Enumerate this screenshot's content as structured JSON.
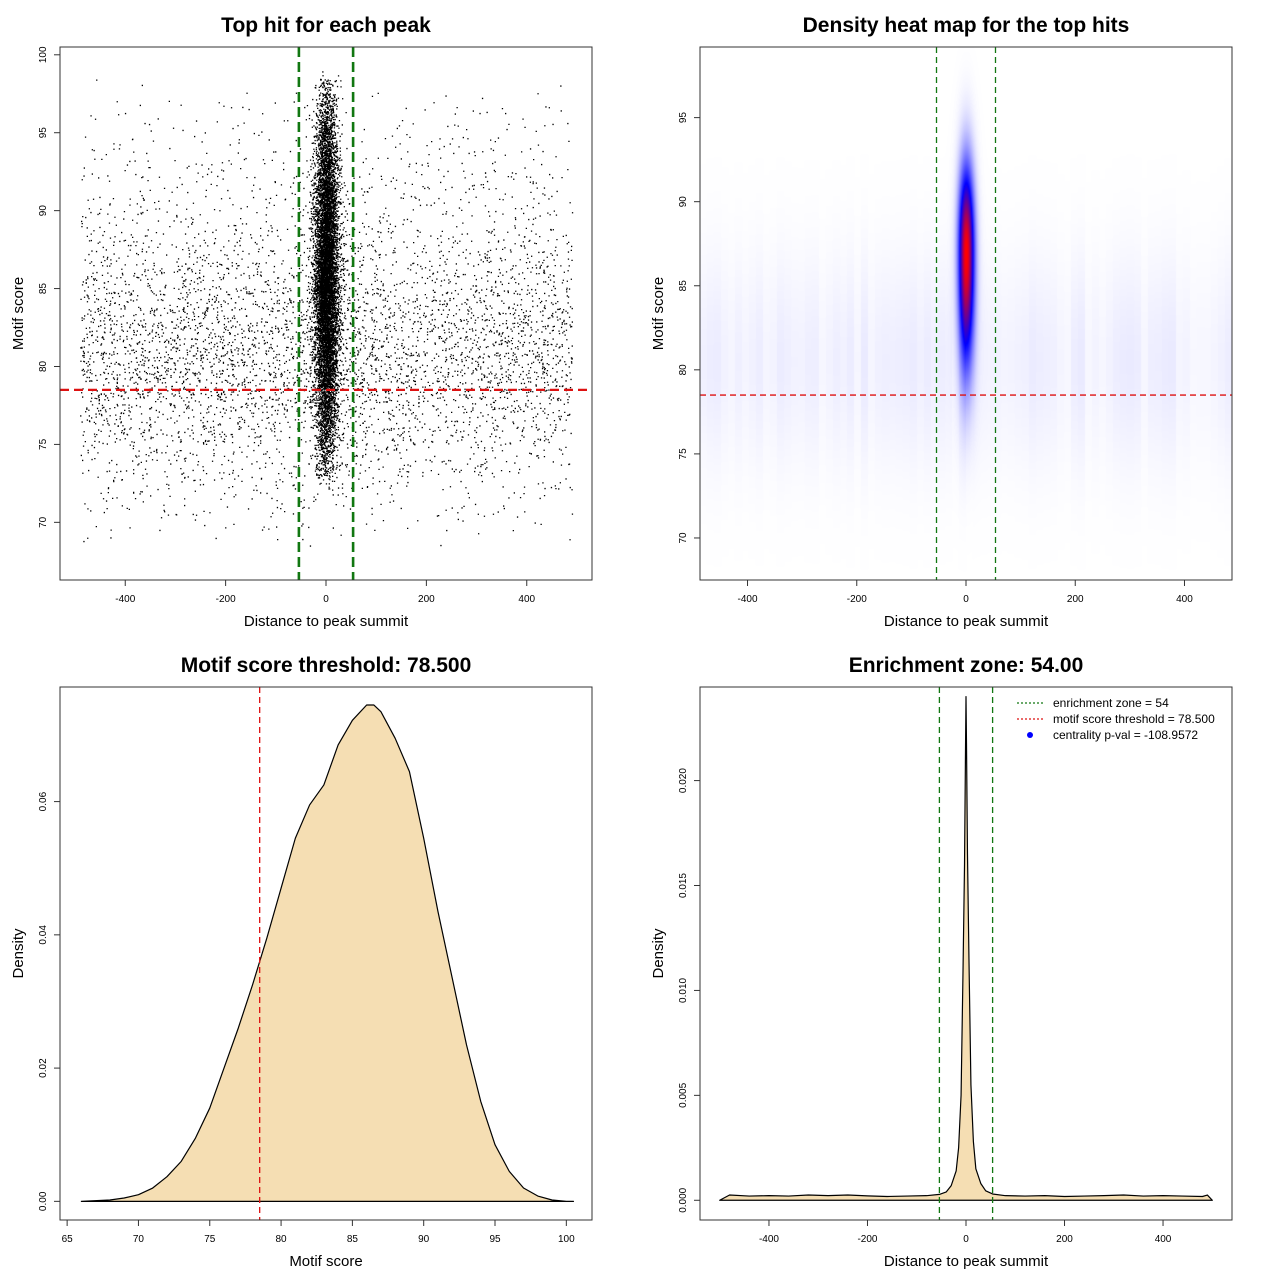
{
  "page": {
    "background": "#ffffff"
  },
  "chart_data": [
    {
      "id": "scatter",
      "type": "scatter",
      "title": "Top hit for each peak",
      "xlabel": "Distance to peak summit",
      "ylabel": "Motif score",
      "xlim": [
        -530,
        530
      ],
      "ylim": [
        66.3,
        100.5
      ],
      "xticks": [
        -400,
        -200,
        0,
        200,
        400
      ],
      "yticks": [
        70,
        75,
        80,
        85,
        90,
        95,
        100
      ],
      "point_color": "#000000",
      "background_distribution": {
        "x_range": [
          -490,
          490
        ],
        "y_range": [
          68.3,
          98.5
        ],
        "y_mode": 80.5
      },
      "central_cluster": {
        "x_center": 0,
        "x_sd": 12,
        "y_range": [
          72,
          99
        ],
        "y_mode": 86
      },
      "threshold": {
        "axis": "y",
        "value": 78.5,
        "color": "#dd1111",
        "style": "dashed"
      },
      "zone_lines": {
        "axis": "x",
        "values": [
          -54,
          54
        ],
        "color": "#117711",
        "style": "dashed"
      }
    },
    {
      "id": "heatmap",
      "type": "heatmap",
      "title": "Density heat map for the top hits",
      "xlabel": "Distance to peak summit",
      "ylabel": "Motif score",
      "xlim": [
        -487,
        487
      ],
      "ylim": [
        67.5,
        99.2
      ],
      "xticks": [
        -400,
        -200,
        0,
        200,
        400
      ],
      "yticks": [
        70,
        75,
        80,
        85,
        90,
        95
      ],
      "colormap": [
        "#ffffff",
        "#0000ff",
        "#ff0000"
      ],
      "peak": {
        "x": 0,
        "y": 87,
        "x_spread": 10,
        "y_spread_low": 4.5,
        "y_spread_high": 3.5
      },
      "threshold": {
        "axis": "y",
        "value": 78.5,
        "color": "#dd1111",
        "style": "dashed"
      },
      "zone_lines": {
        "axis": "x",
        "values": [
          -54,
          54
        ],
        "color": "#117711",
        "style": "dashed"
      }
    },
    {
      "id": "score-density",
      "type": "area",
      "title": "Motif score threshold: 78.500",
      "xlabel": "Motif score",
      "ylabel": "Density",
      "xlim": [
        64.5,
        101.8
      ],
      "ylim": [
        -0.0028,
        0.0772
      ],
      "xticks": [
        65,
        70,
        75,
        80,
        85,
        90,
        95,
        100
      ],
      "yticks": [
        0.0,
        0.02,
        0.04,
        0.06
      ],
      "ytick_labels": [
        "0.00",
        "0.02",
        "0.04",
        "0.06"
      ],
      "fill": "#f5deb3",
      "x": [
        66,
        68,
        69,
        70,
        71,
        72,
        73,
        74,
        75,
        76,
        77,
        78,
        79,
        80,
        81,
        82,
        83,
        84,
        85,
        86,
        86.5,
        87,
        88,
        89,
        90,
        91,
        92,
        93,
        94,
        95,
        96,
        97,
        98,
        99,
        100,
        100.5
      ],
      "y": [
        0,
        0.0002,
        0.0005,
        0.001,
        0.002,
        0.0037,
        0.006,
        0.0095,
        0.014,
        0.02,
        0.026,
        0.0325,
        0.0395,
        0.047,
        0.0545,
        0.0595,
        0.0625,
        0.0685,
        0.0722,
        0.0745,
        0.0745,
        0.0735,
        0.0695,
        0.0645,
        0.0545,
        0.0435,
        0.0335,
        0.0235,
        0.015,
        0.0085,
        0.0045,
        0.002,
        0.0008,
        0.0002,
        0,
        0
      ],
      "threshold": {
        "axis": "x",
        "value": 78.5,
        "color": "#dd1111",
        "style": "dashed"
      }
    },
    {
      "id": "distance-density",
      "type": "area",
      "title": "Enrichment zone: 54.00",
      "xlabel": "Distance to peak summit",
      "ylabel": "Density",
      "xlim": [
        -540,
        540
      ],
      "ylim": [
        -0.00094,
        0.02446
      ],
      "xticks": [
        -400,
        -200,
        0,
        200,
        400
      ],
      "yticks": [
        0.0,
        0.005,
        0.01,
        0.015,
        0.02
      ],
      "ytick_labels": [
        "0.000",
        "0.005",
        "0.010",
        "0.015",
        "0.020"
      ],
      "fill": "#f5deb3",
      "x": [
        -500,
        -480,
        -440,
        -400,
        -360,
        -320,
        -280,
        -240,
        -200,
        -160,
        -120,
        -80,
        -54,
        -40,
        -30,
        -20,
        -15,
        -10,
        -6,
        -3,
        -1,
        0,
        1,
        3,
        6,
        10,
        15,
        20,
        30,
        40,
        54,
        80,
        120,
        160,
        200,
        240,
        280,
        320,
        360,
        400,
        440,
        480,
        490,
        500
      ],
      "y": [
        0,
        0.00025,
        0.0002,
        0.00022,
        0.0002,
        0.00025,
        0.00022,
        0.00025,
        0.00021,
        0.00018,
        0.0002,
        0.00022,
        0.00028,
        0.0004,
        0.0007,
        0.0014,
        0.0025,
        0.005,
        0.011,
        0.016,
        0.0215,
        0.024,
        0.0218,
        0.0165,
        0.0115,
        0.0055,
        0.0028,
        0.0015,
        0.0008,
        0.00045,
        0.0003,
        0.00022,
        0.0002,
        0.00022,
        0.00018,
        0.0002,
        0.00022,
        0.00025,
        0.0002,
        0.00022,
        0.0002,
        0.00018,
        0.00025,
        0
      ],
      "zone_lines": {
        "axis": "x",
        "values": [
          -54,
          54
        ],
        "color": "#117711",
        "style": "dashed"
      },
      "legend": {
        "position": "top-right",
        "entries": [
          {
            "label": "enrichment zone = 54",
            "symbol": "dotted-line",
            "color": "#117711"
          },
          {
            "label": "motif score threshold = 78.500",
            "symbol": "dotted-line",
            "color": "#dd1111"
          },
          {
            "label": "centrality p-val = -108.9572",
            "symbol": "dot",
            "color": "#0000ff"
          }
        ]
      }
    }
  ]
}
